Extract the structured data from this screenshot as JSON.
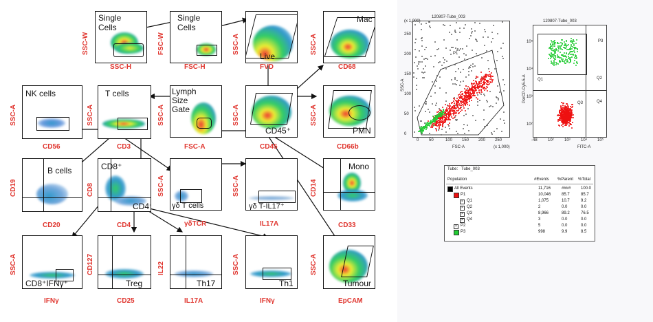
{
  "flow_panels": {
    "p1": {
      "ylabel": "SSC-W",
      "xlabel": "SSC-H",
      "label": "Single\nCells"
    },
    "p2": {
      "ylabel": "FSC-W",
      "xlabel": "FSC-H",
      "label": "Single\nCells"
    },
    "p3": {
      "ylabel": "SSC-A",
      "xlabel": "FVD",
      "label": "Live"
    },
    "p4": {
      "ylabel": "SSC-A",
      "xlabel": "CD68",
      "label": "Mac"
    },
    "p5": {
      "ylabel": "SSC-A",
      "xlabel": "CD56",
      "label": "NK cells"
    },
    "p6": {
      "ylabel": "SSC-A",
      "xlabel": "CD3",
      "label": "T cells"
    },
    "p7": {
      "ylabel": "SSC-A",
      "xlabel": "FSC-A",
      "label": "Lymph\nSize\nGate"
    },
    "p8": {
      "ylabel": "SSC-A",
      "xlabel": "CD45",
      "label": "CD45⁺"
    },
    "p9": {
      "ylabel": "SSC-A",
      "xlabel": "CD66b",
      "label": "PMN"
    },
    "p10": {
      "ylabel": "CD19",
      "xlabel": "CD20",
      "label": "B cells"
    },
    "p11": {
      "ylabel": "CD8",
      "xlabel": "CD4",
      "label": "CD8⁺",
      "label2": "CD4⁺"
    },
    "p12": {
      "ylabel": "SSC-A",
      "xlabel": "γδTCR",
      "label": "γδ T cells"
    },
    "p13": {
      "ylabel": "SSC-A",
      "xlabel": "IL17A",
      "label": "γδ T-IL17⁺"
    },
    "p14": {
      "ylabel": "CD14",
      "xlabel": "CD33",
      "label": "Mono"
    },
    "p15": {
      "ylabel": "SSC-A",
      "xlabel": "IFNγ",
      "label": "CD8⁺IFNγ⁺"
    },
    "p16": {
      "ylabel": "CD127",
      "xlabel": "CD25",
      "label": "Treg"
    },
    "p17": {
      "ylabel": "IL22",
      "xlabel": "IL17A",
      "label": "Th17"
    },
    "p18": {
      "ylabel": "SSC-A",
      "xlabel": "IFNγ",
      "label": "Th1"
    },
    "p19": {
      "ylabel": "SSC-A",
      "xlabel": "EpCAM",
      "label": "Tumour"
    }
  },
  "cytometer": {
    "left": {
      "title": "120807-Tube_003",
      "ylabel": "SSC-A",
      "xlabel": "FSC-A",
      "axis_scale": "(x 1,000)",
      "xticks": [
        "0",
        "50",
        "100",
        "150",
        "200",
        "250"
      ],
      "yticks": [
        "0",
        "50",
        "100",
        "150",
        "200",
        "250"
      ],
      "gate": "P1"
    },
    "right": {
      "title": "120807-Tube_003",
      "ylabel": "PerCP-Cy5-5-A",
      "xlabel": "FITC-A",
      "xticks": [
        "-48",
        "10²",
        "10³",
        "10⁴",
        "10⁵"
      ],
      "yticks": [
        "10²",
        "10³",
        "10⁴",
        "10⁵"
      ],
      "gates": [
        "P3",
        "Q1",
        "Q2",
        "Q3",
        "Q4"
      ]
    },
    "colors": {
      "red": "#ee1111",
      "green": "#22cc33",
      "gray": "#666666"
    }
  },
  "table": {
    "tube_label": "Tube:",
    "tube_value": "Tube_003",
    "headers": [
      "Population",
      "#Events",
      "%Parent",
      "%Total"
    ],
    "rows": [
      {
        "name": "All Events",
        "events": "11,716",
        "parent": "####",
        "total": "100.0",
        "swatch": "#000000",
        "indent": 0
      },
      {
        "name": "P1",
        "events": "10,046",
        "parent": "85.7",
        "total": "85.7",
        "swatch": "#ee1111",
        "indent": 1
      },
      {
        "name": "Q1",
        "events": "1,075",
        "parent": "10.7",
        "total": "9.2",
        "swatch": "q",
        "indent": 2
      },
      {
        "name": "Q2",
        "events": "2",
        "parent": "0.0",
        "total": "0.0",
        "swatch": "q",
        "indent": 2
      },
      {
        "name": "Q3",
        "events": "8,966",
        "parent": "89.2",
        "total": "76.5",
        "swatch": "q",
        "indent": 2
      },
      {
        "name": "Q4",
        "events": "3",
        "parent": "0.0",
        "total": "0.0",
        "swatch": "q",
        "indent": 2
      },
      {
        "name": "P2",
        "events": "5",
        "parent": "0.0",
        "total": "0.0",
        "swatch": "q",
        "indent": 1
      },
      {
        "name": "P3",
        "events": "998",
        "parent": "9.9",
        "total": "8.5",
        "swatch": "#22cc33",
        "indent": 1
      }
    ]
  }
}
